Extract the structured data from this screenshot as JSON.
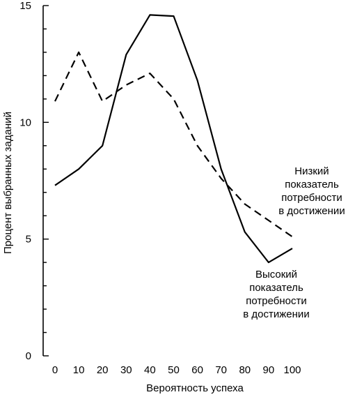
{
  "chart_data": {
    "type": "line",
    "title": "",
    "xlabel": "Вероятность успеха",
    "ylabel": "Процент выбранных заданий",
    "x": [
      0,
      10,
      20,
      30,
      40,
      50,
      60,
      70,
      80,
      90,
      100
    ],
    "xlim": [
      0,
      100
    ],
    "ylim": [
      0,
      15
    ],
    "x_ticks": [
      0,
      10,
      20,
      30,
      40,
      50,
      60,
      70,
      80,
      90,
      100
    ],
    "y_ticks": [
      0,
      5,
      10,
      15
    ],
    "y_tick_labels": [
      "0",
      "5",
      "10",
      "15"
    ],
    "grid": false,
    "series": [
      {
        "key": "high",
        "style": "solid",
        "color": "#000000",
        "values": [
          7.3,
          8.0,
          9.0,
          12.9,
          14.6,
          14.55,
          11.8,
          8.0,
          5.3,
          4.0,
          4.6
        ]
      },
      {
        "key": "low",
        "style": "dashed",
        "color": "#000000",
        "values": [
          10.9,
          13.0,
          10.9,
          11.6,
          12.1,
          11.0,
          9.0,
          7.6,
          6.5,
          5.8,
          5.1
        ]
      }
    ],
    "annotations": [
      {
        "key": "low",
        "lines": [
          "Низкий",
          "показатель",
          "потребности",
          "в достижении"
        ]
      },
      {
        "key": "high",
        "lines": [
          "Высокий",
          "показатель",
          "потребности",
          "в достижении"
        ]
      }
    ]
  }
}
